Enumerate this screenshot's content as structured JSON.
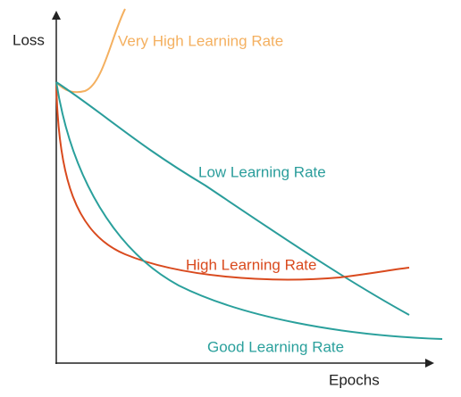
{
  "axes": {
    "y_label": "Loss",
    "x_label": "Epochs"
  },
  "curves": [
    {
      "label": "Very High Learning Rate"
    },
    {
      "label": "Low Learning Rate"
    },
    {
      "label": "High Learning Rate"
    },
    {
      "label": "Good Learning Rate"
    }
  ]
}
